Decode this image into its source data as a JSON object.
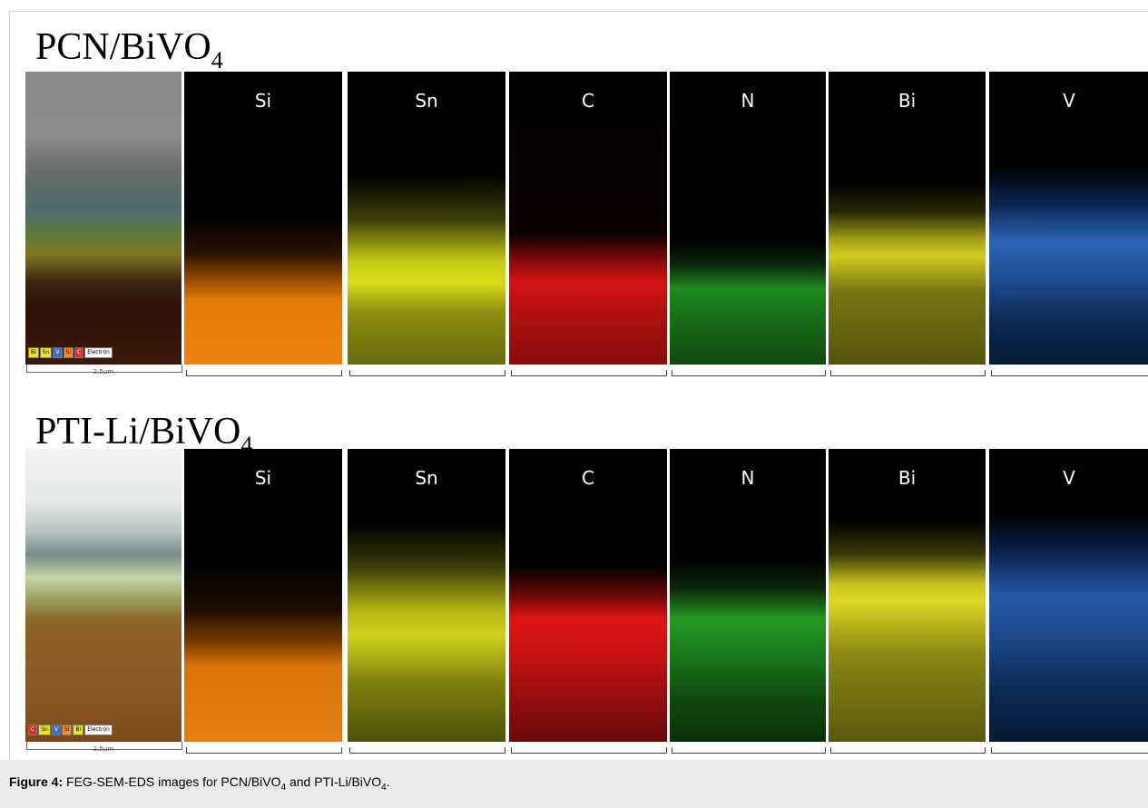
{
  "figure": {
    "rows": [
      {
        "title_main": "PCN/BiVO",
        "title_sub": "4",
        "legend": [
          "Bi",
          "Sn",
          "V",
          "Si",
          "C",
          "Electron"
        ],
        "scale": "2.5μm",
        "maps": [
          "Si",
          "Sn",
          "C",
          "N",
          "Bi",
          "V"
        ]
      },
      {
        "title_main": "PTI-Li/BiVO",
        "title_sub": "4",
        "legend": [
          "C",
          "Sn",
          "V",
          "Si",
          "Bi",
          "Electron"
        ],
        "scale": "2.5μm",
        "maps": [
          "Si",
          "Sn",
          "C",
          "N",
          "Bi",
          "V"
        ]
      }
    ],
    "element_colors": {
      "Si": "#ff7a00",
      "Sn": "#d6e21a",
      "C": "#e01010",
      "N": "#1fa01f",
      "Bi": "#c8c41a",
      "V": "#1f5fbf"
    }
  },
  "caption": {
    "label": "Figure 4:",
    "text_1": " FEG-SEM-EDS images for PCN/BiVO",
    "sub_1": "4",
    "text_2": " and PTI-Li/BiVO",
    "sub_2": "4",
    "text_3": "."
  }
}
